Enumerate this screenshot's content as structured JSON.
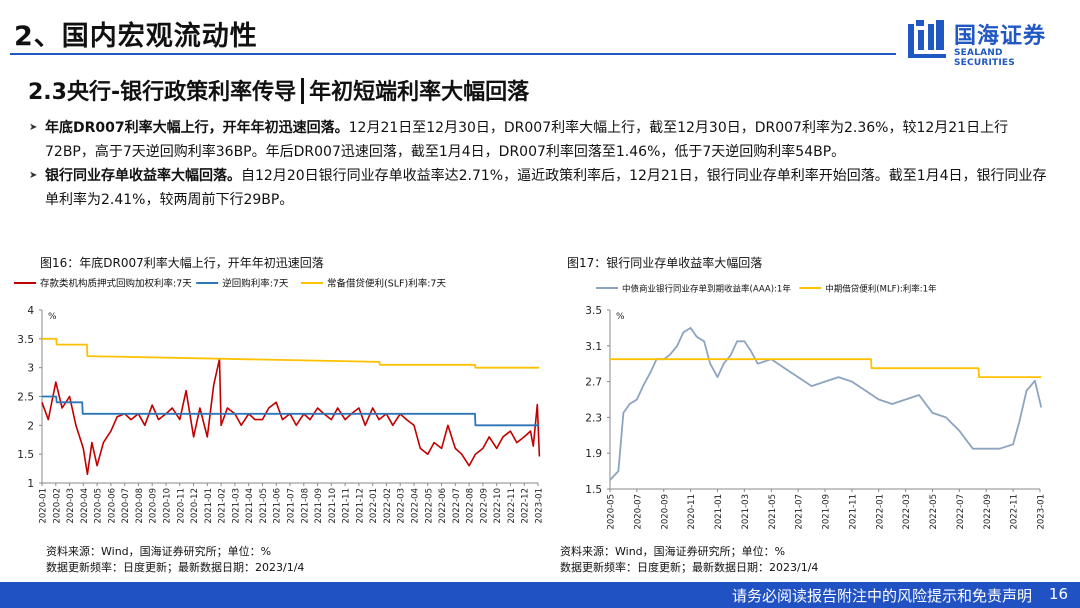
{
  "header": {
    "section_title": "2、国内宏观流动性",
    "logo_cn": "国海证券",
    "logo_en": "SEALAND SECURITIES"
  },
  "slide": {
    "title_left": "2.3央行-银行政策利率传导",
    "title_right": "年初短端利率大幅回落"
  },
  "bullets": [
    {
      "bold": "年底DR007利率大幅上行，开年年初迅速回落。",
      "text": "12月21日至12月30日，DR007利率大幅上行，截至12月30日，DR007利率为2.36%，较12月21日上行72BP，高于7天逆回购利率36BP。年后DR007迅速回落，截至1月4日，DR007利率回落至1.46%，低于7天逆回购利率54BP。"
    },
    {
      "bold": "银行同业存单收益率大幅回落。",
      "text": "自12月20日银行同业存单收益率达2.71%，逼近政策利率后，12月21日，银行同业存单利率开始回落。截至1月4日，银行同业存单利率为2.41%，较两周前下行29BP。"
    }
  ],
  "colors": {
    "brand_blue": "#1f57c3",
    "footer_blue": "#2152c4",
    "dr007_red": "#c00000",
    "repo_blue": "#2e75b6",
    "slf_yellow": "#ffc000",
    "ncd_gray": "#8da4c0",
    "mlf_yellow": "#ffc000"
  },
  "chart_data": [
    {
      "type": "line",
      "caption": "图16：年底DR007利率大幅上行，开年年初迅速回落",
      "unit": "%",
      "ylim": [
        1,
        4
      ],
      "yticks": [
        "1",
        "1.5",
        "2",
        "2.5",
        "3",
        "3.5",
        "4"
      ],
      "xticks": [
        "2020-01",
        "2020-02",
        "2020-03",
        "2020-04",
        "2020-05",
        "2020-06",
        "2020-07",
        "2020-08",
        "2020-09",
        "2020-10",
        "2020-11",
        "2020-12",
        "2021-01",
        "2021-02",
        "2021-03",
        "2021-04",
        "2021-05",
        "2021-06",
        "2021-07",
        "2021-08",
        "2021-09",
        "2021-10",
        "2021-11",
        "2021-12",
        "2022-01",
        "2022-02",
        "2022-03",
        "2022-04",
        "2022-05",
        "2022-06",
        "2022-07",
        "2022-08",
        "2022-09",
        "2022-10",
        "2022-11",
        "2022-12",
        "2023-01"
      ],
      "series": [
        {
          "name": "存款类机构质押式回购加权利率:7天",
          "x": [
            "2020-01",
            "2020-01-15",
            "2020-02",
            "2020-02-15",
            "2020-03",
            "2020-03-15",
            "2020-04",
            "2020-04-10",
            "2020-04-20",
            "2020-05",
            "2020-05-15",
            "2020-06",
            "2020-06-15",
            "2020-07",
            "2020-07-15",
            "2020-08",
            "2020-08-15",
            "2020-09",
            "2020-09-15",
            "2020-10",
            "2020-10-15",
            "2020-11",
            "2020-11-15",
            "2020-12",
            "2020-12-15",
            "2021-01",
            "2021-01-15",
            "2021-01-28",
            "2021-02",
            "2021-02-15",
            "2021-03",
            "2021-03-15",
            "2021-04",
            "2021-04-15",
            "2021-05",
            "2021-05-15",
            "2021-06",
            "2021-06-15",
            "2021-07",
            "2021-07-15",
            "2021-08",
            "2021-08-15",
            "2021-09",
            "2021-09-15",
            "2021-10",
            "2021-10-15",
            "2021-11",
            "2021-11-15",
            "2021-12",
            "2021-12-15",
            "2022-01",
            "2022-01-15",
            "2022-02",
            "2022-02-15",
            "2022-03",
            "2022-03-15",
            "2022-04",
            "2022-04-15",
            "2022-05",
            "2022-05-15",
            "2022-06",
            "2022-06-15",
            "2022-07",
            "2022-07-15",
            "2022-08",
            "2022-08-15",
            "2022-09",
            "2022-09-15",
            "2022-10",
            "2022-10-15",
            "2022-11",
            "2022-11-15",
            "2022-12",
            "2022-12-15",
            "2022-12-21",
            "2022-12-30",
            "2023-01-04"
          ],
          "values": [
            2.4,
            2.1,
            2.75,
            2.3,
            2.5,
            2.0,
            1.6,
            1.15,
            1.7,
            1.3,
            1.7,
            1.9,
            2.15,
            2.2,
            2.1,
            2.2,
            2.0,
            2.35,
            2.1,
            2.2,
            2.3,
            2.1,
            2.6,
            1.8,
            2.3,
            1.8,
            2.7,
            3.15,
            2.0,
            2.3,
            2.2,
            2.0,
            2.2,
            2.1,
            2.1,
            2.3,
            2.4,
            2.1,
            2.2,
            2.0,
            2.2,
            2.1,
            2.3,
            2.2,
            2.1,
            2.3,
            2.1,
            2.2,
            2.3,
            2.0,
            2.3,
            2.1,
            2.2,
            2.0,
            2.2,
            2.1,
            2.0,
            1.6,
            1.5,
            1.7,
            1.6,
            2.0,
            1.6,
            1.5,
            1.3,
            1.5,
            1.6,
            1.8,
            1.6,
            1.8,
            1.9,
            1.7,
            1.8,
            1.9,
            1.64,
            2.36,
            1.46
          ]
        },
        {
          "name": "逆回购利率:7天",
          "x": [
            "2020-01",
            "2020-02-02",
            "2020-02-03",
            "2020-03-29",
            "2020-03-30",
            "2022-08-14",
            "2022-08-15",
            "2023-01-04"
          ],
          "values": [
            2.5,
            2.5,
            2.4,
            2.4,
            2.2,
            2.2,
            2.0,
            2.0
          ]
        },
        {
          "name": "常备借贷便利(SLF)利率:7天",
          "x": [
            "2020-01",
            "2020-02-02",
            "2020-02-03",
            "2020-04-09",
            "2020-04-10",
            "2022-01-16",
            "2022-01-17",
            "2022-08-14",
            "2022-08-15",
            "2023-01-04"
          ],
          "values": [
            3.5,
            3.5,
            3.4,
            3.4,
            3.2,
            3.1,
            3.05,
            3.05,
            3.0,
            3.0
          ]
        }
      ],
      "source_line1": "资料来源：Wind，国海证券研究所；单位：%",
      "source_line2": "数据更新频率：日度更新；最新数据日期：2023/1/4"
    },
    {
      "type": "line",
      "caption": "图17：银行同业存单收益率大幅回落",
      "unit": "%",
      "ylim": [
        1.5,
        3.5
      ],
      "yticks": [
        "1.5",
        "1.9",
        "2.3",
        "2.7",
        "3.1",
        "3.5"
      ],
      "xticks": [
        "2020-05",
        "2020-07",
        "2020-09",
        "2020-11",
        "2021-01",
        "2021-03",
        "2021-05",
        "2021-07",
        "2021-09",
        "2021-11",
        "2022-01",
        "2022-03",
        "2022-05",
        "2022-07",
        "2022-09",
        "2022-11",
        "2023-01"
      ],
      "series": [
        {
          "name": "中债商业银行同业存单到期收益率(AAA):1年",
          "x": [
            "2020-05",
            "2020-05-20",
            "2020-06",
            "2020-06-15",
            "2020-07",
            "2020-07-15",
            "2020-08",
            "2020-08-15",
            "2020-09",
            "2020-09-15",
            "2020-10",
            "2020-10-15",
            "2020-11",
            "2020-11-15",
            "2020-12",
            "2020-12-15",
            "2021-01",
            "2021-01-15",
            "2021-02",
            "2021-02-15",
            "2021-03",
            "2021-03-15",
            "2021-04",
            "2021-05",
            "2021-06",
            "2021-07",
            "2021-08",
            "2021-09",
            "2021-10",
            "2021-11",
            "2021-12",
            "2022-01",
            "2022-02",
            "2022-03",
            "2022-04",
            "2022-05",
            "2022-06",
            "2022-07",
            "2022-08",
            "2022-09",
            "2022-10",
            "2022-11",
            "2022-11-15",
            "2022-12",
            "2022-12-10",
            "2022-12-20",
            "2023-01-04"
          ],
          "values": [
            1.6,
            1.7,
            2.35,
            2.45,
            2.5,
            2.65,
            2.8,
            2.95,
            2.95,
            3.0,
            3.1,
            3.25,
            3.3,
            3.2,
            3.15,
            2.9,
            2.75,
            2.9,
            3.0,
            3.15,
            3.15,
            3.05,
            2.9,
            2.95,
            2.85,
            2.75,
            2.65,
            2.7,
            2.75,
            2.7,
            2.6,
            2.5,
            2.45,
            2.5,
            2.55,
            2.35,
            2.3,
            2.15,
            1.95,
            1.95,
            1.95,
            2.0,
            2.25,
            2.6,
            2.65,
            2.71,
            2.41
          ]
        },
        {
          "name": "中期借贷便利(MLF):利率:1年",
          "x": [
            "2020-05",
            "2021-12-14",
            "2021-12-15",
            "2022-08-14",
            "2022-08-15",
            "2023-01-04"
          ],
          "values": [
            2.95,
            2.95,
            2.85,
            2.85,
            2.75,
            2.75
          ]
        }
      ],
      "source_line1": "资料来源：Wind，国海证券研究所；单位：%",
      "source_line2": "数据更新频率：日度更新；最新数据日期：2023/1/4"
    }
  ],
  "footer": {
    "disclaimer": "请务必阅读报告附注中的风险提示和免责声明",
    "page": "16"
  }
}
